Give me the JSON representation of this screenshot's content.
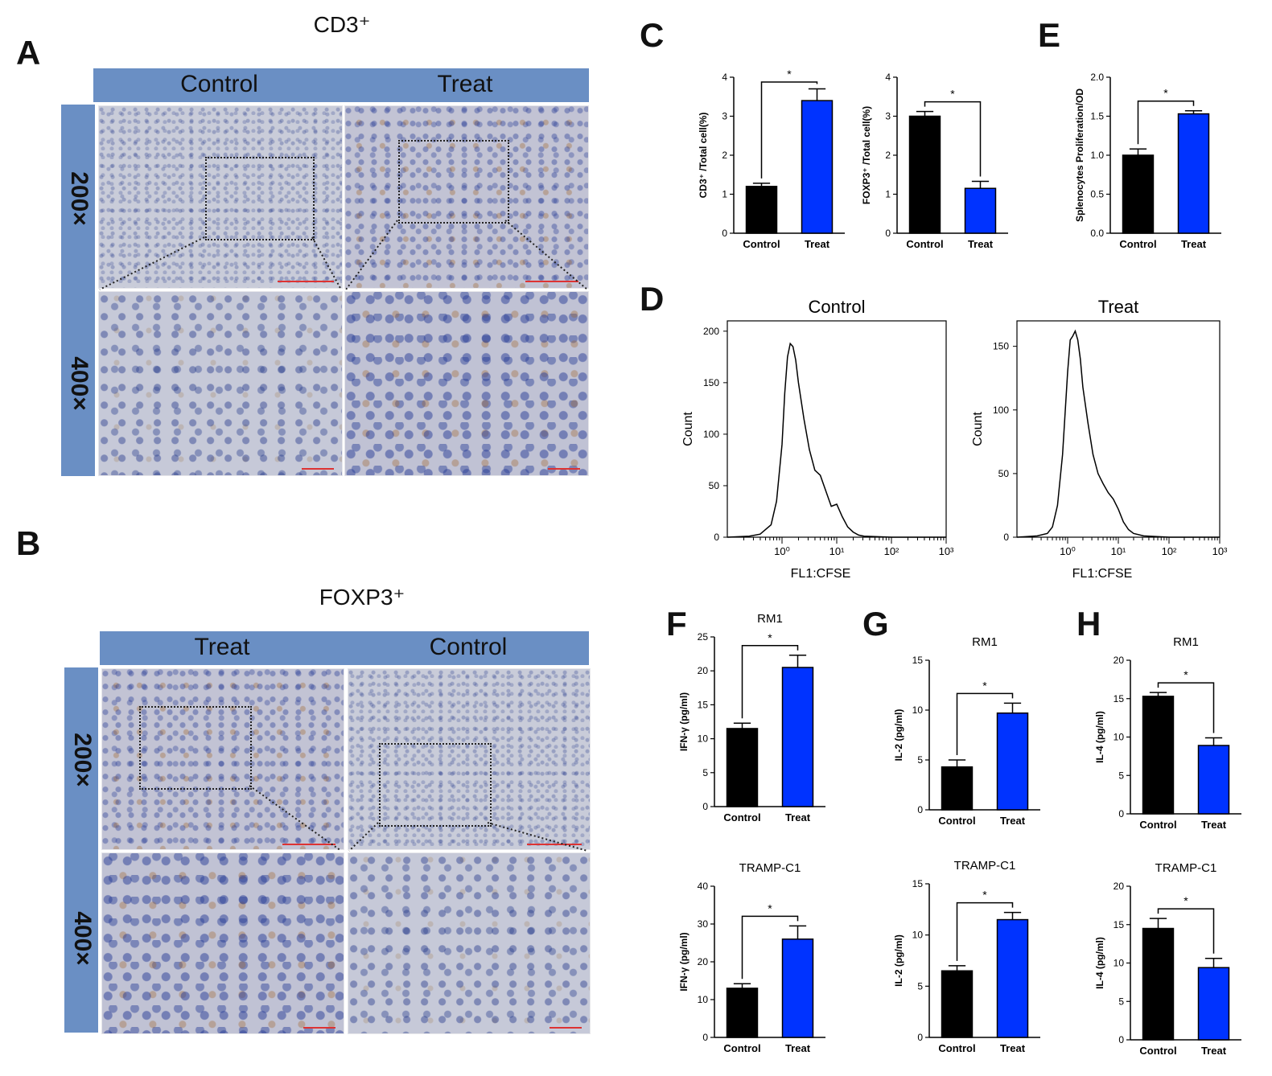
{
  "panel_letters": {
    "A": "A",
    "B": "B",
    "C": "C",
    "D": "D",
    "E": "E",
    "F": "F",
    "G": "G",
    "H": "H"
  },
  "panel_a": {
    "title": "CD3⁺",
    "columns": [
      "Control",
      "Treat"
    ],
    "rows": [
      "200×",
      "400×"
    ]
  },
  "panel_b": {
    "title": "FOXP3⁺",
    "columns": [
      "Treat",
      "Control"
    ],
    "rows": [
      "200×",
      "400×"
    ]
  },
  "colors": {
    "control": "#000000",
    "treat": "#0033ff",
    "bar_header": "#6a8fc4"
  },
  "chart_data": [
    {
      "id": "C1",
      "type": "bar",
      "categories": [
        "Control",
        "Treat"
      ],
      "values": [
        1.2,
        3.4
      ],
      "errors": [
        0.08,
        0.3
      ],
      "ylabel": "CD3⁺ /Total cell(%)",
      "yticks": [
        "0",
        "1",
        "2",
        "3",
        "4"
      ],
      "ylim": [
        0,
        4
      ],
      "significance": "*",
      "title": ""
    },
    {
      "id": "C2",
      "type": "bar",
      "categories": [
        "Control",
        "Treat"
      ],
      "values": [
        3.0,
        1.15
      ],
      "errors": [
        0.12,
        0.18
      ],
      "ylabel": "FOXP3⁺ /Total cell(%)",
      "yticks": [
        "0",
        "1",
        "2",
        "3",
        "4"
      ],
      "ylim": [
        0,
        4
      ],
      "significance": "*",
      "title": ""
    },
    {
      "id": "E",
      "type": "bar",
      "categories": [
        "Control",
        "Treat"
      ],
      "values": [
        1.0,
        1.53
      ],
      "errors": [
        0.08,
        0.04
      ],
      "ylabel": "Splenocytes Proliferation/OD",
      "yticks": [
        "0.0",
        "0.5",
        "1.0",
        "1.5",
        "2.0"
      ],
      "ylim": [
        0,
        2
      ],
      "significance": "*",
      "title": ""
    },
    {
      "id": "D1",
      "type": "line",
      "title": "Control",
      "xlabel": "FL1:CFSE",
      "ylabel": "Count",
      "xticks": [
        "10⁰",
        "10¹",
        "10²",
        "10³"
      ],
      "yticks": [
        "0",
        "50",
        "100",
        "150",
        "200"
      ],
      "ylim": [
        0,
        210
      ],
      "x_log10": [
        -1.0,
        -0.6,
        -0.4,
        -0.2,
        -0.1,
        0.0,
        0.05,
        0.1,
        0.15,
        0.2,
        0.25,
        0.3,
        0.4,
        0.5,
        0.6,
        0.7,
        0.8,
        0.9,
        1.0,
        1.1,
        1.2,
        1.3,
        1.4,
        1.5,
        2.0,
        3.0
      ],
      "y": [
        0,
        1,
        3,
        12,
        35,
        90,
        140,
        175,
        188,
        185,
        172,
        150,
        115,
        85,
        65,
        60,
        45,
        30,
        32,
        20,
        10,
        5,
        2,
        1,
        0,
        0
      ]
    },
    {
      "id": "D2",
      "type": "line",
      "title": "Treat",
      "xlabel": "FL1:CFSE",
      "ylabel": "Count",
      "xticks": [
        "10⁰",
        "10¹",
        "10²",
        "10³"
      ],
      "yticks": [
        "0",
        "50",
        "100",
        "150"
      ],
      "ylim": [
        0,
        170
      ],
      "x_log10": [
        -1.0,
        -0.6,
        -0.4,
        -0.3,
        -0.2,
        -0.1,
        0.0,
        0.05,
        0.1,
        0.15,
        0.2,
        0.25,
        0.3,
        0.4,
        0.5,
        0.6,
        0.7,
        0.8,
        0.9,
        1.0,
        1.1,
        1.2,
        1.3,
        1.5,
        2.0,
        3.0
      ],
      "y": [
        0,
        1,
        3,
        8,
        25,
        65,
        130,
        155,
        158,
        162,
        155,
        140,
        118,
        90,
        65,
        50,
        42,
        35,
        30,
        22,
        12,
        6,
        3,
        1,
        0,
        0
      ]
    },
    {
      "id": "F1",
      "type": "bar",
      "title": "RM1",
      "categories": [
        "Control",
        "Treat"
      ],
      "values": [
        11.5,
        20.5
      ],
      "errors": [
        0.8,
        1.8
      ],
      "ylabel": "IFN-γ  (pg/ml)",
      "yticks": [
        "0",
        "5",
        "10",
        "15",
        "20",
        "25"
      ],
      "ylim": [
        0,
        25
      ],
      "significance": "*"
    },
    {
      "id": "F2",
      "type": "bar",
      "title": "TRAMP-C1",
      "categories": [
        "Control",
        "Treat"
      ],
      "values": [
        13,
        26
      ],
      "errors": [
        1.2,
        3.5
      ],
      "ylabel": "IFN-γ  (pg/ml)",
      "yticks": [
        "0",
        "10",
        "20",
        "30",
        "40"
      ],
      "ylim": [
        0,
        40
      ],
      "significance": "*"
    },
    {
      "id": "G1",
      "type": "bar",
      "title": "RM1",
      "categories": [
        "Control",
        "Treat"
      ],
      "values": [
        4.3,
        9.7
      ],
      "errors": [
        0.7,
        1.0
      ],
      "ylabel": "IL-2  (pg/ml)",
      "yticks": [
        "0",
        "5",
        "10",
        "15"
      ],
      "ylim": [
        0,
        15
      ],
      "significance": "*"
    },
    {
      "id": "G2",
      "type": "bar",
      "title": "TRAMP-C1",
      "categories": [
        "Control",
        "Treat"
      ],
      "values": [
        6.5,
        11.5
      ],
      "errors": [
        0.5,
        0.7
      ],
      "ylabel": "IL-2  (pg/ml)",
      "yticks": [
        "0",
        "5",
        "10",
        "15"
      ],
      "ylim": [
        0,
        15
      ],
      "significance": "*"
    },
    {
      "id": "H1",
      "type": "bar",
      "title": "RM1",
      "categories": [
        "Control",
        "Treat"
      ],
      "values": [
        15.3,
        8.9
      ],
      "errors": [
        0.5,
        1.0
      ],
      "ylabel": "IL-4  (pg/ml)",
      "yticks": [
        "0",
        "5",
        "10",
        "15",
        "20"
      ],
      "ylim": [
        0,
        20
      ],
      "significance": "*"
    },
    {
      "id": "H2",
      "type": "bar",
      "title": "TRAMP-C1",
      "categories": [
        "Control",
        "Treat"
      ],
      "values": [
        14.5,
        9.4
      ],
      "errors": [
        1.3,
        1.2
      ],
      "ylabel": "IL-4  (pg/ml)",
      "yticks": [
        "0",
        "5",
        "10",
        "15",
        "20"
      ],
      "ylim": [
        0,
        20
      ],
      "significance": "*"
    }
  ]
}
